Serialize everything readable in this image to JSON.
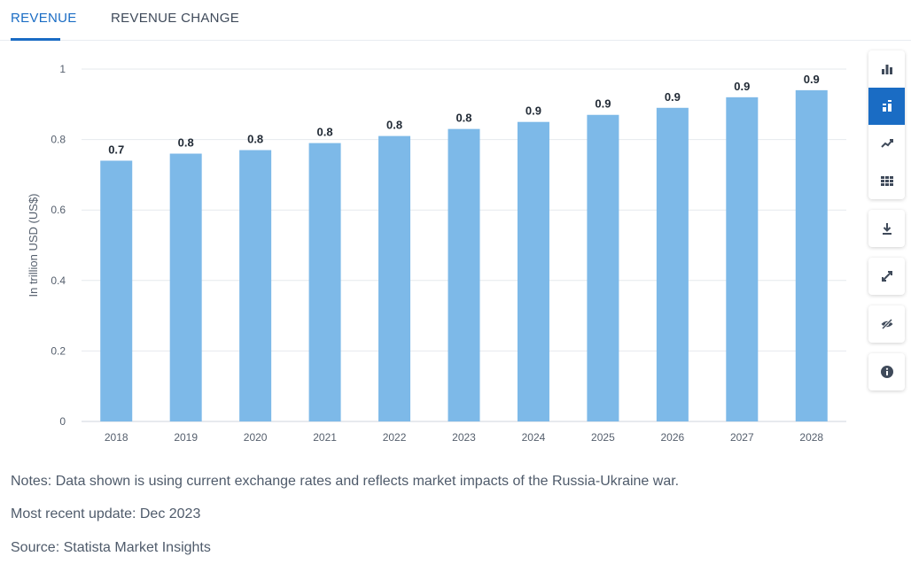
{
  "tabs": [
    {
      "label": "REVENUE",
      "active": true
    },
    {
      "label": "REVENUE CHANGE",
      "active": false
    }
  ],
  "toolbar": {
    "buttons": [
      {
        "icon": "bar-chart-icon",
        "active": false
      },
      {
        "icon": "bar-chart-labels-icon",
        "active": true
      },
      {
        "icon": "trend-line-icon",
        "active": false
      },
      {
        "icon": "table-icon",
        "active": false
      },
      {
        "icon": "download-icon",
        "active": false
      },
      {
        "icon": "fullscreen-icon",
        "active": false
      },
      {
        "icon": "hide-icon",
        "active": false
      },
      {
        "icon": "info-icon",
        "active": false
      }
    ]
  },
  "chart_data": {
    "type": "bar",
    "categories": [
      "2018",
      "2019",
      "2020",
      "2021",
      "2022",
      "2023",
      "2024",
      "2025",
      "2026",
      "2027",
      "2028"
    ],
    "values": [
      0.74,
      0.76,
      0.77,
      0.79,
      0.81,
      0.83,
      0.85,
      0.87,
      0.89,
      0.92,
      0.94
    ],
    "data_labels": [
      "0.7",
      "0.8",
      "0.8",
      "0.8",
      "0.8",
      "0.8",
      "0.9",
      "0.9",
      "0.9",
      "0.9",
      "0.9"
    ],
    "ylabel": "In trillion USD (US$)",
    "xlabel": "",
    "ylim": [
      0,
      1
    ],
    "yticks": [
      "0",
      "0.2",
      "0.4",
      "0.6",
      "0.8",
      "1"
    ],
    "grid": true,
    "bar_color": "#7db9e8"
  },
  "notes": {
    "note": "Notes: Data shown is using current exchange rates and reflects market impacts of the Russia-Ukraine war.",
    "update": "Most recent update: Dec 2023",
    "source": "Source: Statista Market Insights"
  },
  "colors": {
    "accent": "#1a6cc4",
    "bar": "#7db9e8"
  }
}
